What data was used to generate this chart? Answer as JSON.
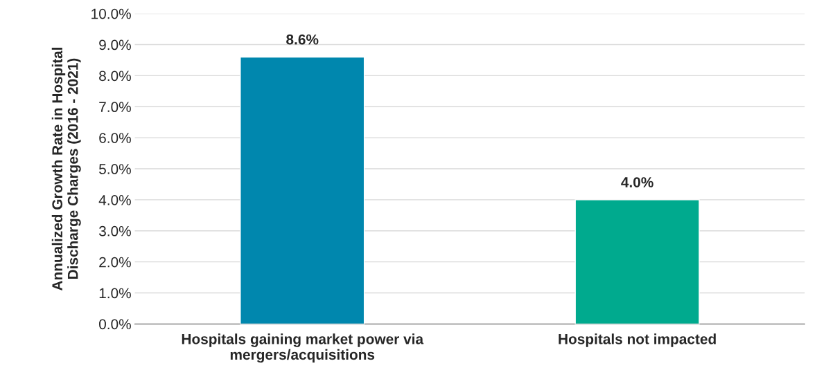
{
  "chart_data": {
    "type": "bar",
    "ylabel": "Annualized Growth Rate in Hospital\nDischarge Charges (2016 - 2021)",
    "categories": [
      "Hospitals gaining market power via\nmergers/acquisitions",
      "Hospitals not impacted"
    ],
    "values": [
      8.6,
      4.0
    ],
    "colors": [
      "#0087ae",
      "#00aa8e"
    ],
    "value_labels": [
      "8.6%",
      "4.0%"
    ],
    "ylim": [
      0,
      10
    ],
    "yticks": [
      {
        "value": 0,
        "label": "0.0%"
      },
      {
        "value": 1,
        "label": "1.0%"
      },
      {
        "value": 2,
        "label": "2.0%"
      },
      {
        "value": 3,
        "label": "3.0%"
      },
      {
        "value": 4,
        "label": "4.0%"
      },
      {
        "value": 5,
        "label": "5.0%"
      },
      {
        "value": 6,
        "label": "6.0%"
      },
      {
        "value": 7,
        "label": "7.0%"
      },
      {
        "value": 8,
        "label": "8.0%"
      },
      {
        "value": 9,
        "label": "9.0%"
      },
      {
        "value": 10,
        "label": "10.0%"
      }
    ],
    "grid": "y"
  }
}
